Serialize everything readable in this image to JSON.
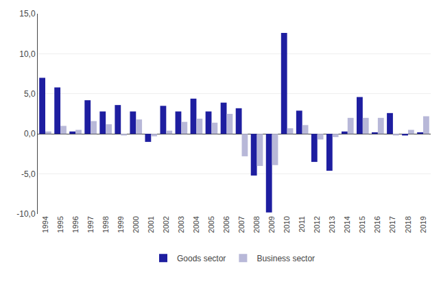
{
  "chart_data": {
    "type": "bar",
    "categories": [
      "1994",
      "1995",
      "1996",
      "1997",
      "1998",
      "1999",
      "2000",
      "2001",
      "2002",
      "2003",
      "2004",
      "2005",
      "2006",
      "2007",
      "2008",
      "2009",
      "2010",
      "2011",
      "2012",
      "2013",
      "2014",
      "2015",
      "2016",
      "2017",
      "2018",
      "2019"
    ],
    "series": [
      {
        "name": "Goods sector",
        "color": "#1E1EA0",
        "values": [
          7.0,
          5.8,
          0.3,
          4.2,
          2.8,
          3.6,
          2.8,
          -1.0,
          3.5,
          2.8,
          4.4,
          2.8,
          3.9,
          3.2,
          -5.2,
          -9.8,
          12.6,
          2.9,
          -3.5,
          -4.6,
          0.3,
          4.6,
          0.2,
          2.6,
          -0.2,
          0.2
        ]
      },
      {
        "name": "Business sector",
        "color": "#B8B8D8",
        "values": [
          0.3,
          1.0,
          0.5,
          1.6,
          1.2,
          -0.2,
          1.8,
          -0.3,
          0.4,
          1.5,
          1.9,
          1.4,
          2.5,
          -2.8,
          -4.0,
          -3.9,
          0.7,
          1.1,
          -0.7,
          -0.4,
          2.0,
          2.0,
          2.0,
          -0.2,
          0.5,
          2.2
        ]
      }
    ],
    "ylim": [
      -10.0,
      15.0
    ],
    "yticks": [
      {
        "value": -10.0,
        "label": "-10,0"
      },
      {
        "value": -5.0,
        "label": "-5,0"
      },
      {
        "value": 0.0,
        "label": "0,0"
      },
      {
        "value": 5.0,
        "label": "5,0"
      },
      {
        "value": 10.0,
        "label": "10,0"
      },
      {
        "value": 15.0,
        "label": "15,0"
      }
    ],
    "grid": true,
    "legend": "bottom"
  }
}
